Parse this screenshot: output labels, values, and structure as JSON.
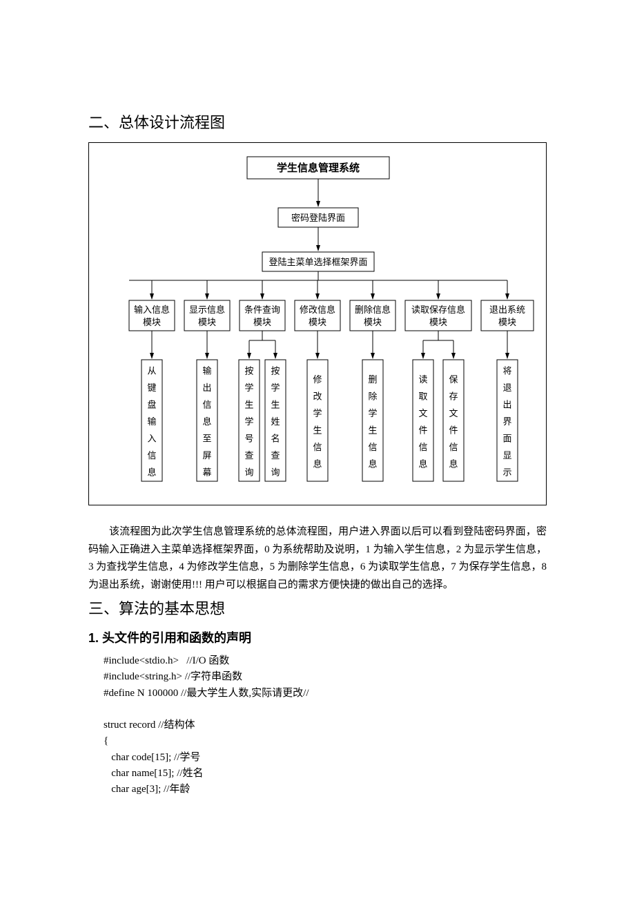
{
  "heading_section2": "二、总体设计流程图",
  "heading_section3": "三、算法的基本思想",
  "subheading_1": "1. 头文件的引用和函数的声明",
  "flowchart": {
    "title": "学生信息管理系统",
    "n_login": "密码登陆界面",
    "n_menu": "登陆主菜单选择框架界面",
    "mods": {
      "m1a": "输入信息",
      "m1b": "模块",
      "m2a": "显示信息",
      "m2b": "模块",
      "m3a": "条件查询",
      "m3b": "模块",
      "m4a": "修改信息",
      "m4b": "模块",
      "m5a": "删除信息",
      "m5b": "模块",
      "m6a": "读取保存信息",
      "m6b": "模块",
      "m7a": "退出系统",
      "m7b": "模块"
    },
    "leaves": {
      "l1": "从键盘输入信息",
      "l2": "输出信息至屏幕",
      "l3": "按学生学号查询",
      "l4": "按学生姓名查询",
      "l5": "修改学生信息",
      "l6": "删除学生信息",
      "l7": "读取文件信息",
      "l8": "保存文件信息",
      "l9": "将退出界面显示"
    },
    "style": {
      "stroke": "#000000",
      "stroke_width": 1,
      "fill": "#ffffff",
      "font_size": 13,
      "font_size_title": 15
    }
  },
  "paragraph": "该流程图为此次学生信息管理系统的总体流程图，用户进入界面以后可以看到登陆密码界面，密码输入正确进入主菜单选择框架界面，0  为系统帮助及说明，1 为输入学生信息，2 为显示学生信息，3 为查找学生信息，4 为修改学生信息，5 为删除学生信息，6 为读取学生信息，7 为保存学生信息，8 为退出系统，谢谢使用!!!   用户可以根据自己的需求方便快捷的做出自己的选择。",
  "code": {
    "l1": "#include<stdio.h>   //I/O 函数",
    "l2": "#include<string.h> //字符串函数",
    "l3": "#define N 100000 //最大学生人数,实际请更改//",
    "l4": "",
    "l5": "struct record //结构体",
    "l6": "{",
    "l7": "   char code[15]; //学号",
    "l8": "   char name[15]; //姓名",
    "l9": "   char age[3]; //年龄"
  }
}
